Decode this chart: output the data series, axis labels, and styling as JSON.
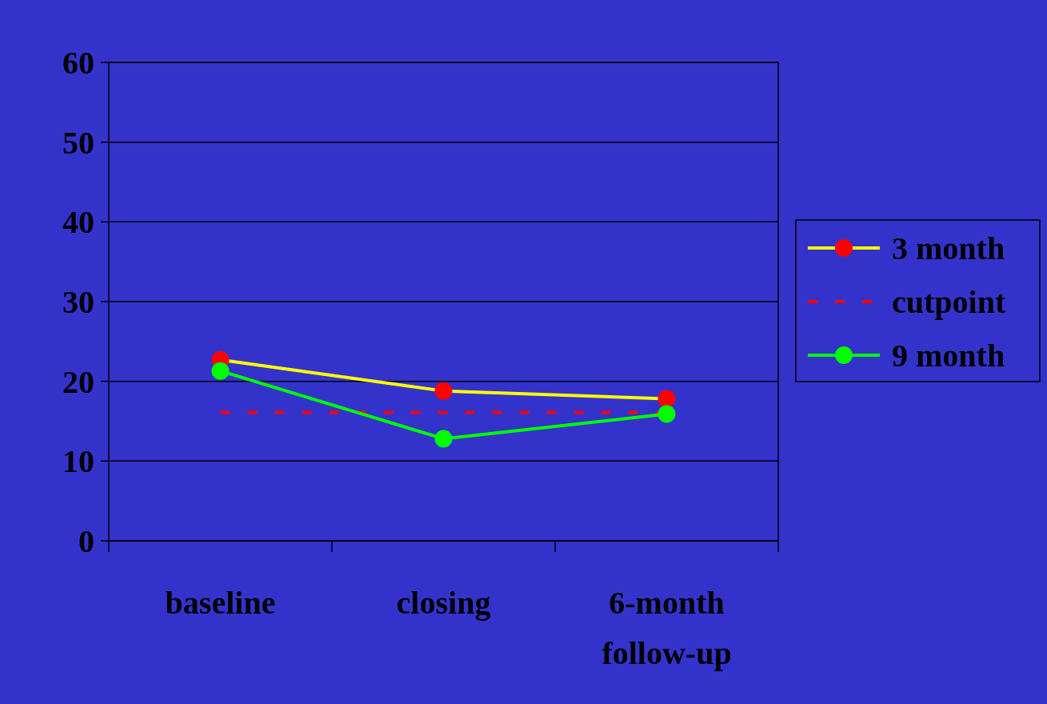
{
  "chart_data": {
    "type": "line",
    "categories": [
      "baseline",
      "closing",
      "6-month follow-up"
    ],
    "series": [
      {
        "name": "3 month",
        "color": "#ffff00",
        "colors": [
          "#ff0000",
          "#ff0000",
          "#ff0000"
        ],
        "marker": "circle",
        "values": [
          22.7,
          18.8,
          17.8
        ]
      },
      {
        "name": "cutpoint",
        "color": "#ff0000",
        "marker": "none",
        "line_style": "dashed",
        "values": [
          16.1,
          16.1,
          16.1
        ]
      },
      {
        "name": "9 month",
        "color": "#00ff00",
        "marker": "circle",
        "values": [
          21.3,
          12.8,
          15.9
        ]
      }
    ],
    "ylim": [
      0,
      60
    ],
    "yticks": [
      0,
      10,
      20,
      30,
      40,
      50,
      60
    ],
    "grid": "y",
    "legend": "right",
    "line_style": "solid"
  }
}
